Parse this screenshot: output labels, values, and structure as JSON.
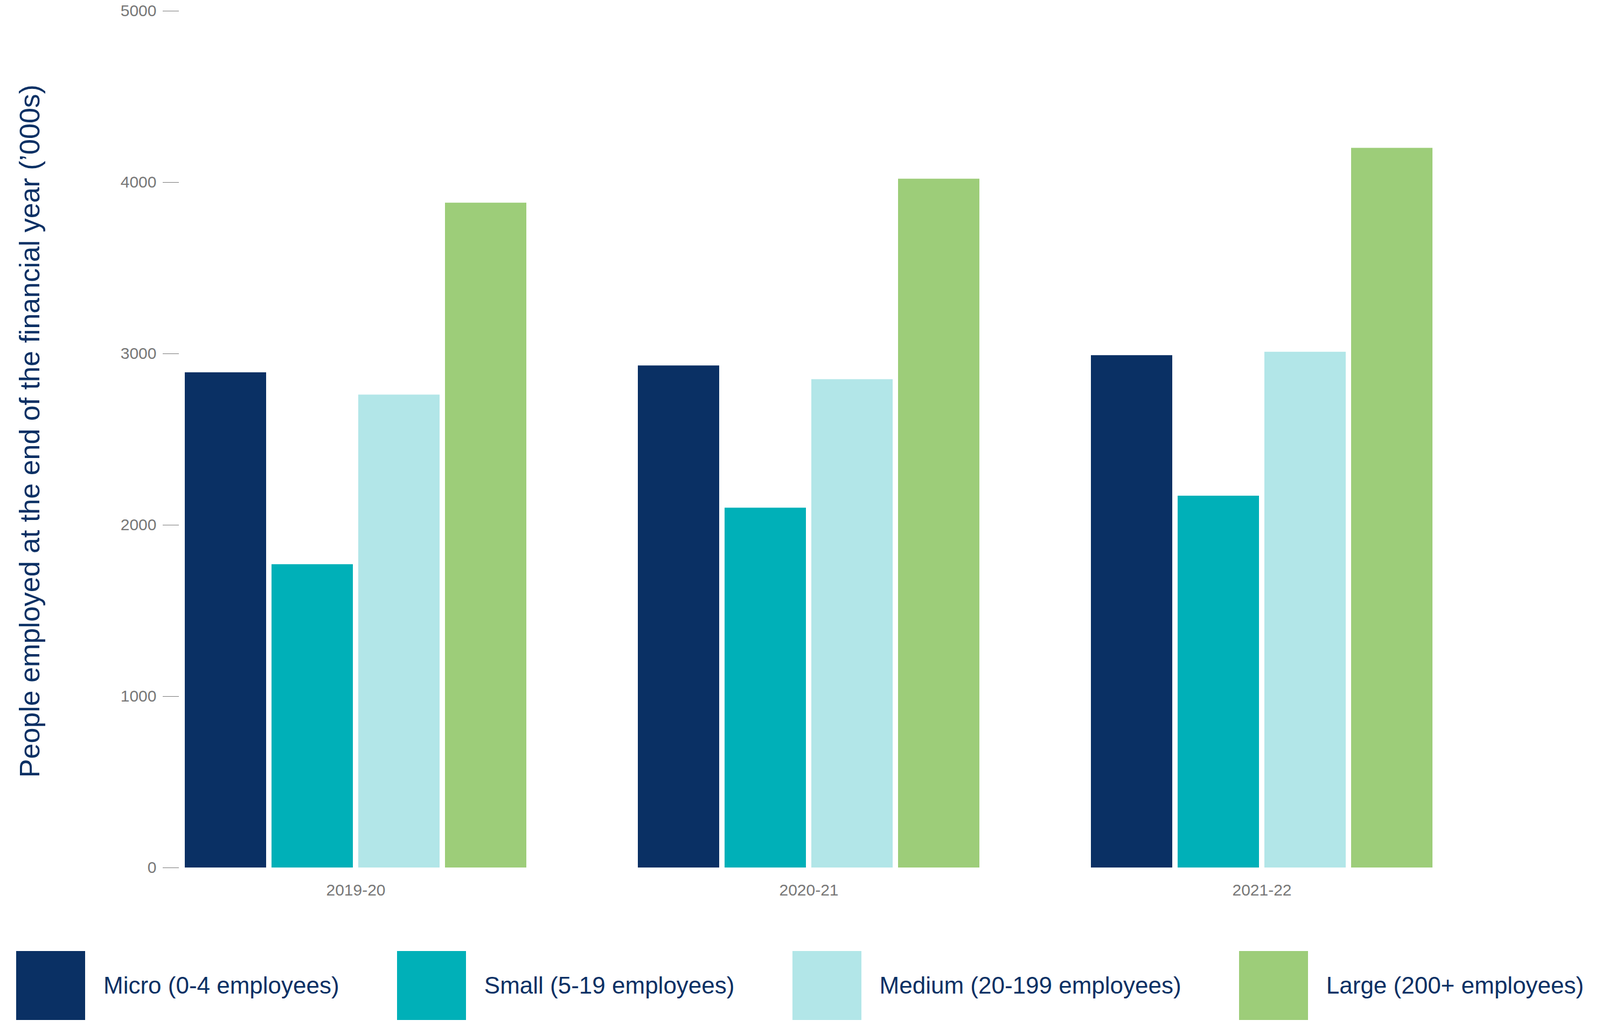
{
  "chart_data": {
    "type": "bar",
    "ylabel": "People employed at the end of the financial year (’000s)",
    "categories": [
      "2019-20",
      "2020-21",
      "2021-22"
    ],
    "series": [
      {
        "name": "Micro (0-4 employees)",
        "color": "#0a3064",
        "values": [
          2890,
          2930,
          2990
        ]
      },
      {
        "name": "Small (5-19 employees)",
        "color": "#00b0b8",
        "values": [
          1770,
          2100,
          2170
        ]
      },
      {
        "name": "Medium (20-199 employees)",
        "color": "#b2e6e8",
        "values": [
          2760,
          2850,
          3010
        ]
      },
      {
        "name": "Large (200+ employees)",
        "color": "#9dcd79",
        "values": [
          3880,
          4020,
          4200
        ]
      }
    ],
    "ylim": [
      0,
      5000
    ],
    "yticks": [
      0,
      1000,
      2000,
      3000,
      4000,
      5000
    ],
    "legend": "bottom"
  }
}
